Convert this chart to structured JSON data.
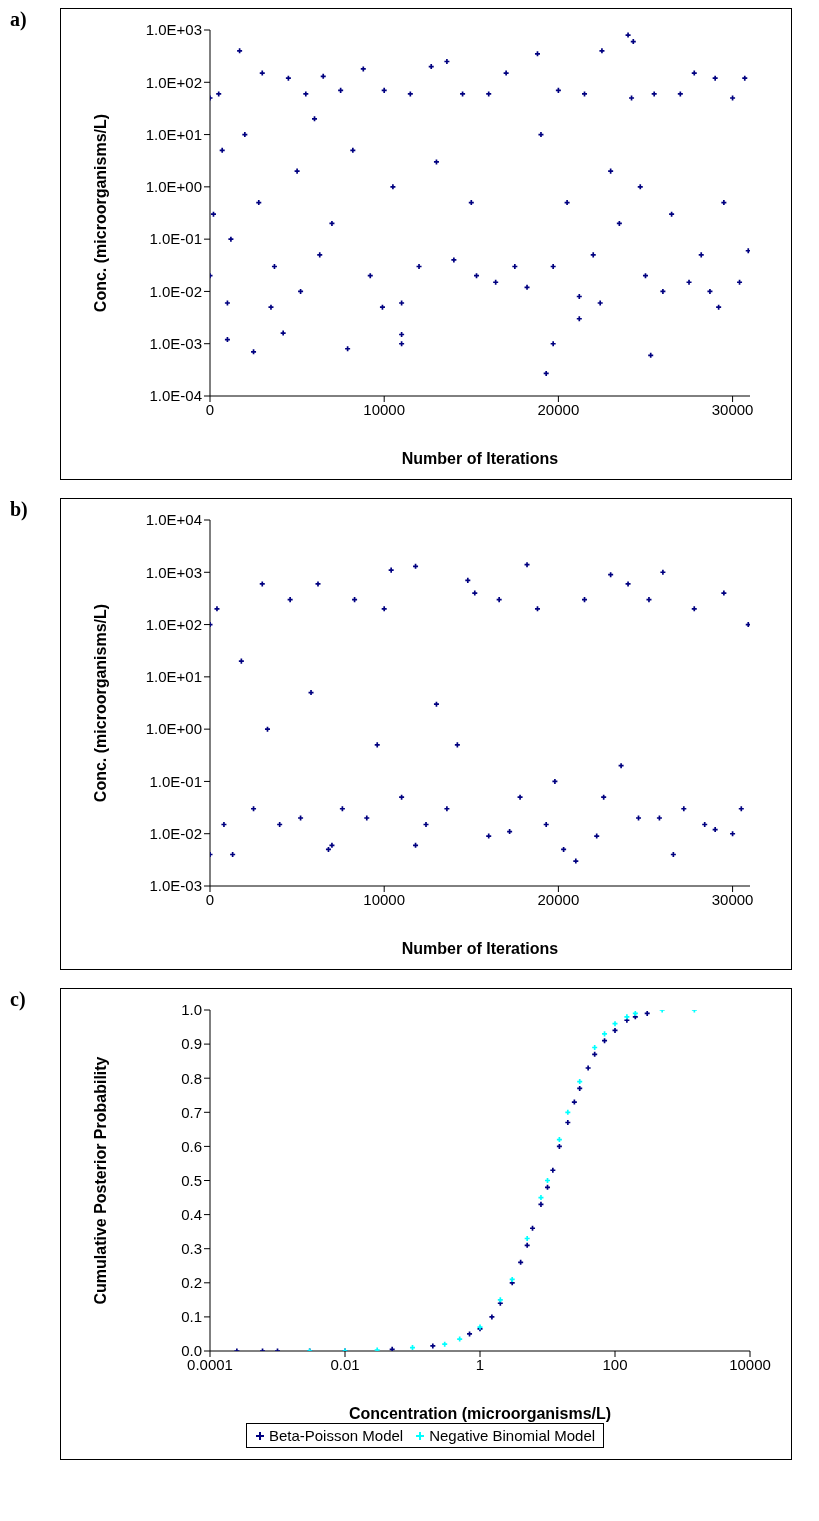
{
  "chart_data": [
    {
      "type": "scatter",
      "annotations": [
        "a)"
      ],
      "xlabel": "Number of Iterations",
      "ylabel": "Conc. (microorganisms/L)",
      "log": "y",
      "marker": "cross",
      "color": "#000080",
      "xlim": [
        0,
        31000
      ],
      "xticks": [
        0,
        10000,
        20000,
        30000
      ],
      "ylim": [
        0.0001,
        1000
      ],
      "yticks": [
        {
          "value": 0.0001,
          "label": "1.0E-04"
        },
        {
          "value": 0.001,
          "label": "1.0E-03"
        },
        {
          "value": 0.01,
          "label": "1.0E-02"
        },
        {
          "value": 0.1,
          "label": "1.0E-01"
        },
        {
          "value": 1,
          "label": "1.0E+00"
        },
        {
          "value": 10,
          "label": "1.0E+01"
        },
        {
          "value": 100,
          "label": "1.0E+02"
        },
        {
          "value": 1000,
          "label": "1.0E+03"
        }
      ],
      "x": [
        0,
        0,
        200,
        500,
        700,
        1000,
        1000,
        1200,
        1700,
        2000,
        2500,
        2800,
        3000,
        3500,
        3700,
        4200,
        4500,
        5000,
        5200,
        5500,
        6000,
        6300,
        6500,
        7000,
        7500,
        7900,
        8200,
        8800,
        9200,
        9900,
        10000,
        10500,
        11000,
        11000,
        11000,
        11500,
        12000,
        12700,
        13000,
        13600,
        14000,
        14500,
        15000,
        15300,
        16000,
        16400,
        17000,
        17500,
        18200,
        18800,
        19000,
        19300,
        19700,
        19700,
        20000,
        20500,
        21200,
        21200,
        21500,
        22000,
        22400,
        22500,
        23000,
        23500,
        24000,
        24200,
        24300,
        24700,
        25000,
        25300,
        25500,
        26000,
        26500,
        27000,
        27500,
        27800,
        28200,
        28700,
        29000,
        29200,
        29500,
        30000,
        30400,
        30700,
        30900
      ],
      "values": [
        50,
        0.02,
        0.3,
        60,
        5,
        0.006,
        0.0012,
        0.1,
        400,
        10,
        0.0007,
        0.5,
        150,
        0.005,
        0.03,
        0.0016,
        120,
        2,
        0.01,
        60,
        20,
        0.05,
        130,
        0.2,
        70,
        0.0008,
        5,
        180,
        0.02,
        0.005,
        70,
        1,
        0.0015,
        0.001,
        0.006,
        60,
        0.03,
        200,
        3,
        250,
        0.04,
        60,
        0.5,
        0.02,
        60,
        0.015,
        150,
        0.03,
        0.012,
        350,
        10,
        0.00027,
        0.001,
        0.03,
        70,
        0.5,
        0.003,
        0.008,
        60,
        0.05,
        0.006,
        400,
        2,
        0.2,
        800,
        50,
        600,
        1,
        0.02,
        0.0006,
        60,
        0.01,
        0.3,
        60,
        0.015,
        150,
        0.05,
        0.01,
        120,
        0.005,
        0.5,
        50,
        0.015,
        120,
        0.06
      ]
    },
    {
      "type": "scatter",
      "annotations": [
        "b)"
      ],
      "xlabel": "Number of Iterations",
      "ylabel": "Conc. (microorganisms/L)",
      "log": "y",
      "marker": "cross",
      "color": "#000080",
      "xlim": [
        0,
        31000
      ],
      "xticks": [
        0,
        10000,
        20000,
        30000
      ],
      "ylim": [
        0.001,
        10000
      ],
      "yticks": [
        {
          "value": 0.001,
          "label": "1.0E-03"
        },
        {
          "value": 0.01,
          "label": "1.0E-02"
        },
        {
          "value": 0.1,
          "label": "1.0E-01"
        },
        {
          "value": 1,
          "label": "1.0E+00"
        },
        {
          "value": 10,
          "label": "1.0E+01"
        },
        {
          "value": 100,
          "label": "1.0E+02"
        },
        {
          "value": 1000,
          "label": "1.0E+03"
        },
        {
          "value": 10000,
          "label": "1.0E+04"
        }
      ],
      "x": [
        0,
        0,
        400,
        800,
        1300,
        1800,
        2500,
        3000,
        3300,
        4000,
        4600,
        5200,
        5800,
        6200,
        6800,
        7000,
        7600,
        8300,
        9000,
        9600,
        10000,
        10400,
        11000,
        11800,
        11800,
        12400,
        13000,
        13600,
        14200,
        14800,
        15200,
        16000,
        16600,
        17200,
        17800,
        18200,
        18800,
        19300,
        19800,
        20300,
        21000,
        21500,
        22200,
        22600,
        23000,
        23600,
        24000,
        24600,
        25200,
        25800,
        26000,
        26600,
        27200,
        27800,
        28400,
        29000,
        29500,
        30000,
        30500,
        30900
      ],
      "values": [
        100,
        0.004,
        200,
        0.015,
        0.004,
        20,
        0.03,
        600,
        1,
        0.015,
        300,
        0.02,
        5,
        600,
        0.005,
        0.006,
        0.03,
        300,
        0.02,
        0.5,
        200,
        1100,
        0.05,
        1300,
        0.006,
        0.015,
        3,
        0.03,
        0.5,
        700,
        400,
        0.009,
        300,
        0.011,
        0.05,
        1400,
        200,
        0.015,
        0.1,
        0.005,
        0.003,
        300,
        0.009,
        0.05,
        900,
        0.2,
        600,
        0.02,
        300,
        0.02,
        1000,
        0.004,
        0.03,
        200,
        0.015,
        0.012,
        400,
        0.01,
        0.03,
        100
      ]
    },
    {
      "type": "scatter",
      "annotations": [
        "c)"
      ],
      "xlabel": "Concentration (microorganisms/L)",
      "ylabel": "Cumulative Posterior Probability",
      "log": "x",
      "marker": "cross",
      "legend": "bottom",
      "xlim": [
        0.0001,
        10000
      ],
      "xticks": [
        0.0001,
        0.01,
        1,
        100,
        10000
      ],
      "ylim": [
        0,
        1
      ],
      "yticks": [
        {
          "value": 0,
          "label": "0.0"
        },
        {
          "value": 0.1,
          "label": "0.1"
        },
        {
          "value": 0.2,
          "label": "0.2"
        },
        {
          "value": 0.3,
          "label": "0.3"
        },
        {
          "value": 0.4,
          "label": "0.4"
        },
        {
          "value": 0.5,
          "label": "0.5"
        },
        {
          "value": 0.6,
          "label": "0.6"
        },
        {
          "value": 0.7,
          "label": "0.7"
        },
        {
          "value": 0.8,
          "label": "0.8"
        },
        {
          "value": 0.9,
          "label": "0.9"
        },
        {
          "value": 1,
          "label": "1.0"
        }
      ],
      "series": [
        {
          "name": "Beta-Poisson Model",
          "color": "#000080",
          "x": [
            0.00025,
            0.0006,
            0.001,
            0.003,
            0.01,
            0.05,
            0.2,
            0.7,
            1,
            1.5,
            2,
            3,
            4,
            5,
            6,
            8,
            10,
            12,
            15,
            20,
            25,
            30,
            40,
            50,
            70,
            100,
            150,
            200,
            300
          ],
          "values": [
            0,
            0,
            0,
            0,
            0,
            0.005,
            0.015,
            0.05,
            0.065,
            0.1,
            0.14,
            0.2,
            0.26,
            0.31,
            0.36,
            0.43,
            0.48,
            0.53,
            0.6,
            0.67,
            0.73,
            0.77,
            0.83,
            0.87,
            0.91,
            0.94,
            0.97,
            0.98,
            0.99
          ]
        },
        {
          "name": "Negative Binomial Model",
          "color": "#00ffff",
          "x": [
            0.003,
            0.01,
            0.03,
            0.1,
            0.3,
            0.5,
            1,
            2,
            3,
            5,
            8,
            10,
            15,
            20,
            30,
            50,
            70,
            100,
            150,
            200,
            500,
            1500
          ],
          "values": [
            0,
            0,
            0.003,
            0.01,
            0.02,
            0.035,
            0.07,
            0.15,
            0.21,
            0.33,
            0.45,
            0.5,
            0.62,
            0.7,
            0.79,
            0.89,
            0.93,
            0.96,
            0.98,
            0.99,
            1,
            1
          ]
        }
      ]
    }
  ]
}
